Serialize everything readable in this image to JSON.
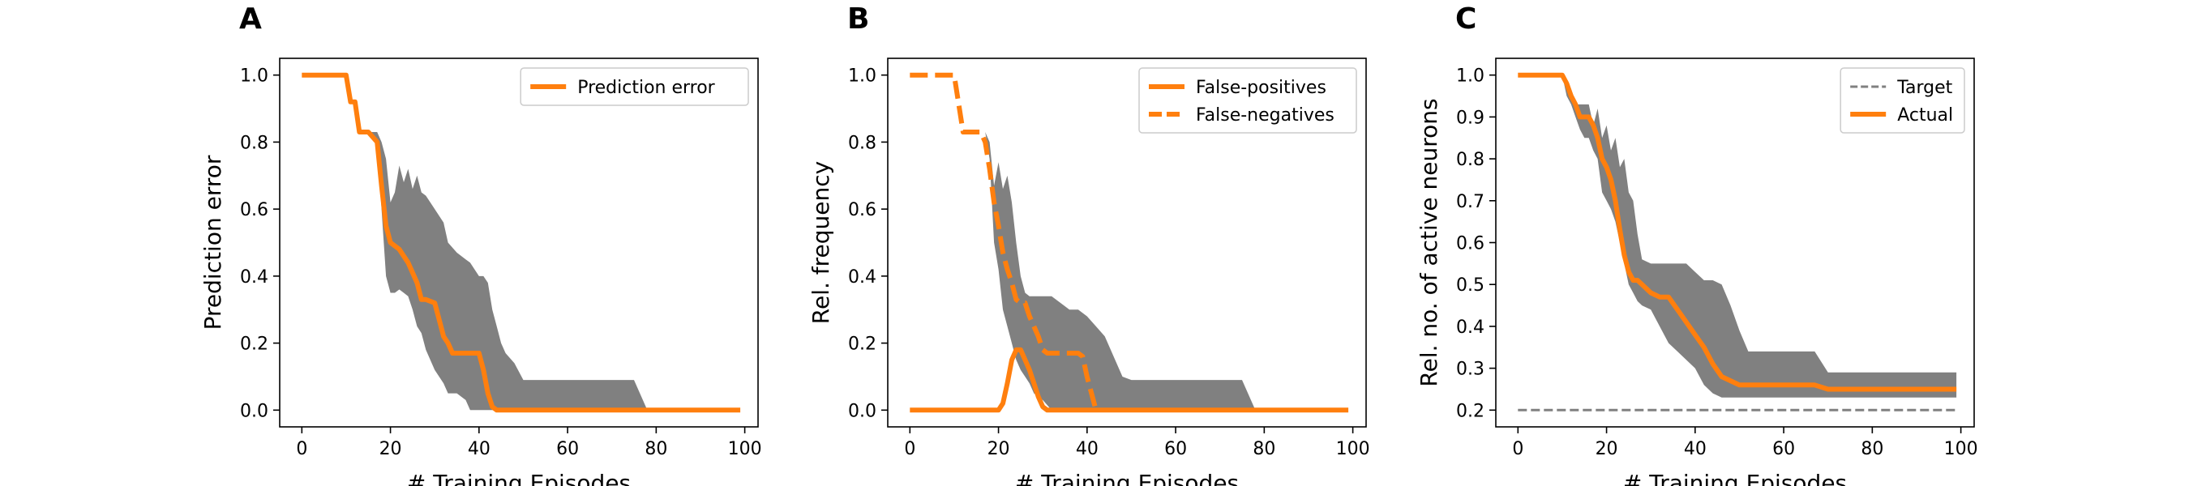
{
  "colors": {
    "line": "#ff7f0e",
    "band": "#808080",
    "target": "#808080",
    "axis": "#000000"
  },
  "chart_data": [
    {
      "panel": "A",
      "type": "line",
      "xlabel": "# Training Episodes",
      "ylabel": "Prediction error",
      "xlim": [
        -5,
        103
      ],
      "ylim": [
        -0.05,
        1.05
      ],
      "xticks": [
        0,
        20,
        40,
        60,
        80,
        100
      ],
      "yticks": [
        0.0,
        0.2,
        0.4,
        0.6,
        0.8,
        1.0
      ],
      "ytick_labels": [
        "0.0",
        "0.2",
        "0.4",
        "0.6",
        "0.8",
        "1.0"
      ],
      "legend_position": "top-right",
      "band": {
        "x": [
          0,
          10,
          11,
          12,
          13,
          15,
          17,
          18,
          19,
          20,
          21,
          22,
          23,
          24,
          25,
          26,
          27,
          28,
          30,
          32,
          33,
          35,
          37,
          38,
          40,
          41,
          42,
          43,
          44,
          45,
          46,
          48,
          50,
          55,
          60,
          65,
          70,
          75,
          78,
          80,
          90,
          99
        ],
        "upper": [
          1.0,
          1.0,
          0.92,
          0.92,
          0.83,
          0.83,
          0.83,
          0.8,
          0.75,
          0.62,
          0.65,
          0.73,
          0.68,
          0.72,
          0.66,
          0.7,
          0.65,
          0.64,
          0.6,
          0.56,
          0.5,
          0.47,
          0.45,
          0.44,
          0.4,
          0.4,
          0.38,
          0.3,
          0.25,
          0.2,
          0.17,
          0.14,
          0.09,
          0.09,
          0.09,
          0.09,
          0.09,
          0.09,
          0.0,
          0.0,
          0.0,
          0.0
        ],
        "lower": [
          1.0,
          1.0,
          0.92,
          0.92,
          0.83,
          0.83,
          0.8,
          0.6,
          0.4,
          0.35,
          0.35,
          0.36,
          0.35,
          0.34,
          0.3,
          0.25,
          0.23,
          0.18,
          0.12,
          0.08,
          0.05,
          0.05,
          0.03,
          0.0,
          0.0,
          0.0,
          0.0,
          0.0,
          0.0,
          0.0,
          0.0,
          0.0,
          0.0,
          0.0,
          0.0,
          0.0,
          0.0,
          0.0,
          0.0,
          0.0,
          0.0,
          0.0
        ]
      },
      "series": [
        {
          "name": "Prediction error",
          "style": "solid",
          "x": [
            0,
            10,
            11,
            12,
            13,
            15,
            17,
            18,
            19,
            20,
            22,
            24,
            26,
            27,
            28,
            30,
            31,
            32,
            33,
            34,
            36,
            38,
            40,
            41,
            42,
            43,
            44,
            45,
            50,
            60,
            70,
            80,
            90,
            99
          ],
          "y": [
            1.0,
            1.0,
            0.92,
            0.92,
            0.83,
            0.83,
            0.8,
            0.67,
            0.55,
            0.5,
            0.48,
            0.44,
            0.38,
            0.33,
            0.33,
            0.32,
            0.27,
            0.22,
            0.2,
            0.17,
            0.17,
            0.17,
            0.17,
            0.12,
            0.05,
            0.01,
            0.0,
            0.0,
            0.0,
            0.0,
            0.0,
            0.0,
            0.0,
            0.0
          ]
        }
      ]
    },
    {
      "panel": "B",
      "type": "line",
      "xlabel": "# Training Episodes",
      "ylabel": "Rel. frequency",
      "xlim": [
        -5,
        103
      ],
      "ylim": [
        -0.05,
        1.05
      ],
      "xticks": [
        0,
        20,
        40,
        60,
        80,
        100
      ],
      "yticks": [
        0.0,
        0.2,
        0.4,
        0.6,
        0.8,
        1.0
      ],
      "ytick_labels": [
        "0.0",
        "0.2",
        "0.4",
        "0.6",
        "0.8",
        "1.0"
      ],
      "legend_position": "top-right",
      "band": {
        "x": [
          0,
          10,
          12,
          14,
          15,
          17,
          18,
          19,
          20,
          21,
          22,
          23,
          24,
          25,
          26,
          27,
          28,
          30,
          32,
          34,
          36,
          38,
          40,
          42,
          44,
          46,
          48,
          50,
          55,
          60,
          70,
          75,
          78,
          80,
          90,
          99
        ],
        "upper": [
          1.0,
          1.0,
          0.83,
          0.83,
          0.83,
          0.83,
          0.8,
          0.67,
          0.74,
          0.66,
          0.7,
          0.62,
          0.5,
          0.4,
          0.35,
          0.34,
          0.34,
          0.34,
          0.34,
          0.32,
          0.3,
          0.3,
          0.28,
          0.25,
          0.22,
          0.16,
          0.1,
          0.09,
          0.09,
          0.09,
          0.09,
          0.09,
          0.0,
          0.0,
          0.0,
          0.0
        ],
        "lower": [
          1.0,
          1.0,
          0.83,
          0.83,
          0.83,
          0.83,
          0.75,
          0.5,
          0.42,
          0.3,
          0.25,
          0.2,
          0.15,
          0.12,
          0.1,
          0.08,
          0.05,
          0.03,
          0.0,
          0.0,
          0.0,
          0.0,
          0.0,
          0.0,
          0.0,
          0.0,
          0.0,
          0.0,
          0.0,
          0.0,
          0.0,
          0.0,
          0.0,
          0.0,
          0.0,
          0.0
        ]
      },
      "series": [
        {
          "name": "False-positives",
          "style": "solid",
          "x": [
            0,
            20,
            21,
            22,
            23,
            24,
            25,
            26,
            27,
            28,
            29,
            30,
            31,
            32,
            40,
            50,
            60,
            70,
            80,
            90,
            99
          ],
          "y": [
            0.0,
            0.0,
            0.02,
            0.08,
            0.15,
            0.18,
            0.18,
            0.15,
            0.12,
            0.08,
            0.04,
            0.01,
            0.0,
            0.0,
            0.0,
            0.0,
            0.0,
            0.0,
            0.0,
            0.0,
            0.0
          ]
        },
        {
          "name": "False-negatives",
          "style": "dashed",
          "x": [
            0,
            10,
            12,
            15,
            16,
            17,
            18,
            19,
            20,
            21,
            22,
            23,
            24,
            25,
            26,
            27,
            28,
            29,
            30,
            31,
            32,
            33,
            34,
            35,
            36,
            37,
            38,
            39,
            40,
            41,
            42
          ],
          "y": [
            1.0,
            1.0,
            0.83,
            0.83,
            0.83,
            0.8,
            0.72,
            0.62,
            0.55,
            0.47,
            0.42,
            0.38,
            0.33,
            0.32,
            0.32,
            0.28,
            0.25,
            0.22,
            0.18,
            0.17,
            0.17,
            0.17,
            0.17,
            0.17,
            0.17,
            0.17,
            0.17,
            0.16,
            0.1,
            0.05,
            0.0
          ]
        }
      ]
    },
    {
      "panel": "C",
      "type": "line",
      "xlabel": "# Training Episodes",
      "ylabel": "Rel. no. of active neurons",
      "xlim": [
        -5,
        103
      ],
      "ylim": [
        0.16,
        1.04
      ],
      "xticks": [
        0,
        20,
        40,
        60,
        80,
        100
      ],
      "yticks": [
        0.2,
        0.3,
        0.4,
        0.5,
        0.6,
        0.7,
        0.8,
        0.9,
        1.0
      ],
      "ytick_labels": [
        "0.2",
        "0.3",
        "0.4",
        "0.5",
        "0.6",
        "0.7",
        "0.8",
        "0.9",
        "1.0"
      ],
      "legend_position": "top-right",
      "band": {
        "x": [
          0,
          10,
          11,
          12,
          13,
          14,
          15,
          16,
          17,
          18,
          19,
          20,
          21,
          22,
          23,
          24,
          25,
          26,
          27,
          28,
          30,
          32,
          34,
          36,
          38,
          40,
          42,
          44,
          46,
          48,
          50,
          52,
          55,
          60,
          65,
          67,
          70,
          75,
          80,
          90,
          99
        ],
        "upper": [
          1.0,
          1.0,
          0.97,
          0.95,
          0.93,
          0.93,
          0.93,
          0.93,
          0.88,
          0.92,
          0.85,
          0.88,
          0.82,
          0.85,
          0.78,
          0.8,
          0.72,
          0.7,
          0.62,
          0.56,
          0.55,
          0.55,
          0.55,
          0.55,
          0.55,
          0.53,
          0.51,
          0.51,
          0.5,
          0.45,
          0.39,
          0.34,
          0.34,
          0.34,
          0.34,
          0.34,
          0.29,
          0.29,
          0.29,
          0.29,
          0.29
        ],
        "lower": [
          1.0,
          1.0,
          0.95,
          0.93,
          0.9,
          0.87,
          0.85,
          0.85,
          0.82,
          0.8,
          0.72,
          0.7,
          0.68,
          0.65,
          0.6,
          0.55,
          0.5,
          0.48,
          0.46,
          0.45,
          0.44,
          0.4,
          0.36,
          0.34,
          0.32,
          0.3,
          0.26,
          0.24,
          0.23,
          0.23,
          0.23,
          0.23,
          0.23,
          0.23,
          0.23,
          0.23,
          0.23,
          0.23,
          0.23,
          0.23,
          0.23
        ]
      },
      "series": [
        {
          "name": "Target",
          "style": "dashed-thin",
          "x": [
            0,
            99
          ],
          "y": [
            0.2,
            0.2
          ]
        },
        {
          "name": "Actual",
          "style": "solid",
          "x": [
            0,
            10,
            11,
            12,
            13,
            14,
            15,
            16,
            17,
            18,
            19,
            20,
            21,
            22,
            23,
            24,
            25,
            26,
            27,
            28,
            30,
            32,
            34,
            36,
            38,
            40,
            42,
            44,
            46,
            48,
            50,
            52,
            55,
            60,
            65,
            67,
            70,
            75,
            80,
            90,
            99
          ],
          "y": [
            1.0,
            1.0,
            0.98,
            0.95,
            0.93,
            0.9,
            0.9,
            0.9,
            0.88,
            0.85,
            0.8,
            0.78,
            0.75,
            0.7,
            0.63,
            0.57,
            0.53,
            0.51,
            0.51,
            0.5,
            0.48,
            0.47,
            0.47,
            0.44,
            0.41,
            0.38,
            0.35,
            0.31,
            0.28,
            0.27,
            0.26,
            0.26,
            0.26,
            0.26,
            0.26,
            0.26,
            0.25,
            0.25,
            0.25,
            0.25,
            0.25
          ]
        }
      ]
    }
  ]
}
